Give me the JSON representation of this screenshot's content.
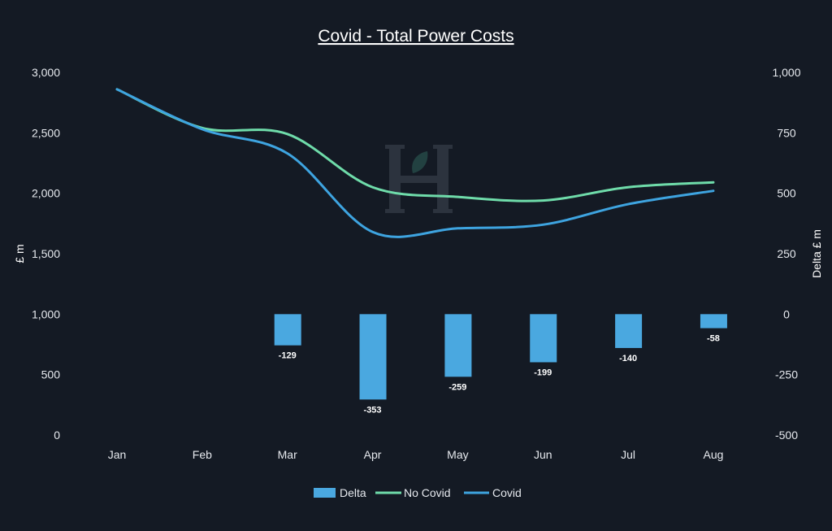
{
  "chart_data": {
    "type": "bar+line",
    "title": "Covid - Total Power Costs",
    "categories": [
      "Jan",
      "Feb",
      "Mar",
      "Apr",
      "May",
      "Jun",
      "Jul",
      "Aug"
    ],
    "y_left": {
      "label": "£ m",
      "range": [
        0,
        3000
      ],
      "ticks": [
        "0",
        "500",
        "1,000",
        "1,500",
        "2,000",
        "2,500",
        "3,000"
      ]
    },
    "y_right": {
      "label": "Delta £ m",
      "range": [
        -500,
        1000
      ],
      "ticks": [
        "-500",
        "-250",
        "0",
        "250",
        "500",
        "750",
        "1,000"
      ]
    },
    "series": [
      {
        "name": "Delta",
        "type": "bar",
        "axis": "right",
        "color": "#4aa8e0",
        "values": [
          null,
          null,
          -129,
          -353,
          -259,
          -199,
          -140,
          -58
        ],
        "labels": [
          "",
          "",
          "-129",
          "-353",
          "-259",
          "-199",
          "-140",
          "-58"
        ]
      },
      {
        "name": "No Covid",
        "type": "line",
        "axis": "left",
        "color": "#6fdcaa",
        "values": [
          2860,
          2540,
          2490,
          2050,
          1970,
          1940,
          2050,
          2090
        ]
      },
      {
        "name": "Covid",
        "type": "line",
        "axis": "left",
        "color": "#3ea4e0",
        "values": [
          2860,
          2530,
          2330,
          1680,
          1710,
          1740,
          1910,
          2020
        ]
      }
    ],
    "legend": {
      "position": "bottom",
      "items": [
        "Delta",
        "No Covid",
        "Covid"
      ]
    },
    "grid": false,
    "watermark": {
      "text": "H"
    }
  }
}
